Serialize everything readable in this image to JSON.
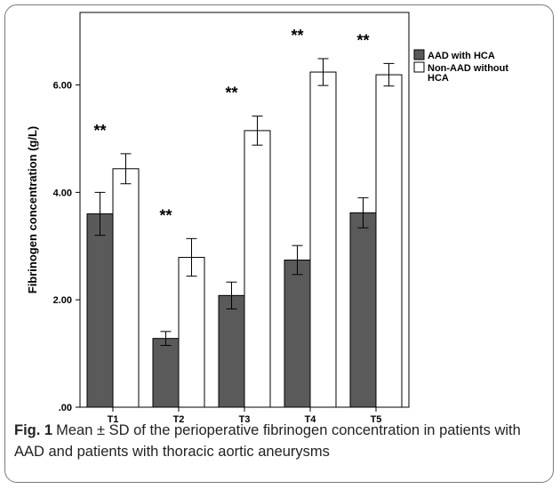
{
  "chart_data": {
    "type": "bar",
    "categories": [
      "T1",
      "T2",
      "T3",
      "T4",
      "T5"
    ],
    "series": [
      {
        "name": "AAD with HCA",
        "color": "#5a5a5a",
        "values": [
          3.6,
          1.28,
          2.08,
          2.74,
          3.62
        ],
        "errors": [
          0.4,
          0.13,
          0.25,
          0.27,
          0.28
        ]
      },
      {
        "name": "Non-AAD without HCA",
        "color": "#ffffff",
        "values": [
          4.44,
          2.79,
          5.15,
          6.24,
          6.19
        ],
        "errors": [
          0.28,
          0.35,
          0.27,
          0.25,
          0.21
        ]
      }
    ],
    "significance": [
      "**",
      "**",
      "**",
      "**",
      "**"
    ],
    "xlabel": "",
    "ylabel": "Fibrinogen concentration (g/L)",
    "ylim": [
      0,
      7.35
    ],
    "yticks": [
      {
        "value": 0,
        "label": ".00"
      },
      {
        "value": 2,
        "label": "2.00"
      },
      {
        "value": 4,
        "label": "4.00"
      },
      {
        "value": 6,
        "label": "6.00"
      }
    ],
    "grid": false,
    "legend_position": "top-right"
  },
  "caption": {
    "label": "Fig. 1",
    "text": "Mean ± SD of the perioperative fibrinogen concentration in patients with AAD and patients with thoracic aortic aneurysms"
  }
}
